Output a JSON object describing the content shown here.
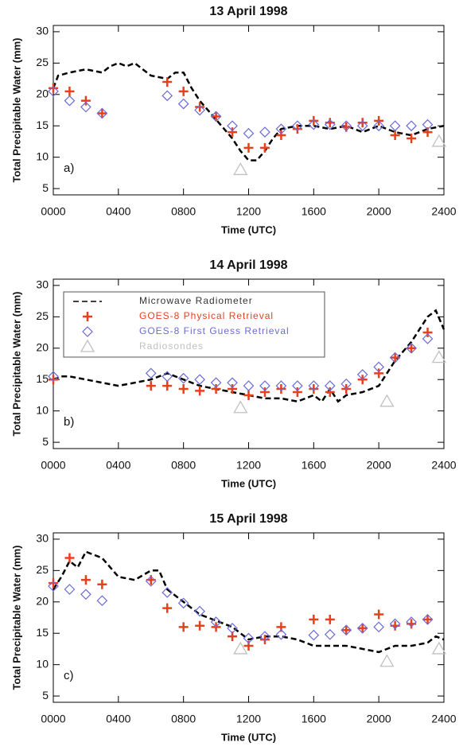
{
  "chart_data": [
    {
      "type": "line",
      "title": "13 April 1998",
      "annotation": "a)",
      "x_label": "Time (UTC)",
      "y_label": "Total Precipitable Water (mm)",
      "xlim": [
        0,
        24
      ],
      "ylim": [
        4,
        31
      ],
      "yticks": [
        5,
        10,
        15,
        20,
        25,
        30
      ],
      "xticks": [
        {
          "value": 0,
          "label": "0000"
        },
        {
          "value": 4,
          "label": "0400"
        },
        {
          "value": 8,
          "label": "0800"
        },
        {
          "value": 12,
          "label": "1200"
        },
        {
          "value": 16,
          "label": "1600"
        },
        {
          "value": 20,
          "label": "2000"
        },
        {
          "value": 24,
          "label": "2400"
        }
      ],
      "series": [
        {
          "type": "line",
          "color": "#000000",
          "x": [
            0,
            0.3,
            1,
            2,
            3,
            3.5,
            4,
            4.5,
            5,
            5.5,
            6,
            7,
            7.5,
            8,
            8.5,
            9,
            9.5,
            10,
            10.5,
            11,
            11.5,
            12,
            12.5,
            13,
            13.5,
            14,
            15,
            16,
            17,
            18,
            19,
            20,
            21,
            22,
            23,
            24
          ],
          "values": [
            21,
            23,
            23.5,
            24,
            23.5,
            24.5,
            25,
            24.5,
            25,
            24,
            23,
            22.5,
            23.5,
            23.5,
            21,
            19,
            17.5,
            16,
            14.5,
            13,
            11,
            9.5,
            9.5,
            11,
            13,
            14.5,
            15,
            15,
            14.5,
            15,
            14,
            15,
            14,
            13.5,
            14.5,
            15
          ]
        },
        {
          "type": "scatter",
          "marker": "plus",
          "color": "#e8401c",
          "x": [
            0,
            1,
            2,
            3,
            7,
            8,
            9,
            10,
            11,
            12,
            13,
            14,
            15,
            16,
            17,
            18,
            19,
            20,
            21,
            22,
            23
          ],
          "values": [
            21,
            20.5,
            19,
            17,
            22,
            20.5,
            18,
            16.5,
            14,
            11.5,
            11.5,
            13.5,
            14.5,
            15.8,
            15.5,
            14.8,
            15.5,
            15.8,
            13.5,
            13,
            14
          ]
        },
        {
          "type": "scatter",
          "marker": "diamond",
          "color": "#6a6ad8",
          "x": [
            0,
            1,
            2,
            3,
            7,
            8,
            9,
            10,
            11,
            12,
            13,
            14,
            15,
            16,
            17,
            18,
            19,
            20,
            21,
            22,
            23
          ],
          "values": [
            20.5,
            19,
            18,
            17,
            19.8,
            18.5,
            17.5,
            16.5,
            15,
            13.8,
            14,
            14.5,
            15,
            15.2,
            15.2,
            15,
            15,
            15,
            15,
            15,
            15.2
          ]
        },
        {
          "type": "scatter",
          "marker": "triangle",
          "color": "#c0c0c0",
          "x": [
            11.5,
            23.7
          ],
          "values": [
            8,
            12.5
          ]
        }
      ]
    },
    {
      "type": "line",
      "title": "14 April 1998",
      "annotation": "b)",
      "x_label": "Time (UTC)",
      "y_label": "Total Precipitable Water (mm)",
      "legend": "upper left",
      "xlim": [
        0,
        24
      ],
      "ylim": [
        4,
        31
      ],
      "yticks": [
        5,
        10,
        15,
        20,
        25,
        30
      ],
      "xticks": [
        {
          "value": 0,
          "label": "0000"
        },
        {
          "value": 4,
          "label": "0400"
        },
        {
          "value": 8,
          "label": "0800"
        },
        {
          "value": 12,
          "label": "1200"
        },
        {
          "value": 16,
          "label": "1600"
        },
        {
          "value": 20,
          "label": "2000"
        },
        {
          "value": 24,
          "label": "2400"
        }
      ],
      "series": [
        {
          "name": "Microwave Radiometer",
          "type": "line",
          "color": "#000000",
          "x": [
            0,
            0.5,
            1,
            2,
            3,
            4,
            5,
            6,
            7,
            8,
            9,
            10,
            11,
            12,
            13,
            14,
            15,
            16,
            16.5,
            17,
            17.5,
            18,
            19,
            20,
            20.5,
            21,
            22,
            22.5,
            23,
            23.5,
            24
          ],
          "values": [
            15,
            15.5,
            15.5,
            15,
            14.5,
            14,
            14.5,
            15,
            16,
            15,
            14,
            13.5,
            13,
            12.5,
            12,
            12,
            11.5,
            12.5,
            11.5,
            13.5,
            11.5,
            12.5,
            13,
            14,
            16,
            18,
            21,
            23,
            25,
            26,
            23
          ]
        },
        {
          "name": "GOES-8 Physical Retrieval",
          "type": "scatter",
          "marker": "plus",
          "color": "#e8401c",
          "x": [
            0,
            6,
            7,
            8,
            9,
            10,
            11,
            12,
            13,
            14,
            15,
            16,
            17,
            18,
            19,
            20,
            21,
            22,
            23
          ],
          "values": [
            15,
            14,
            14,
            13.5,
            13.2,
            13.5,
            13.5,
            12.5,
            13,
            13.5,
            13,
            13.5,
            13,
            13.5,
            15,
            16,
            18.5,
            20,
            22.5
          ]
        },
        {
          "name": "GOES-8 First Guess Retrieval",
          "type": "scatter",
          "marker": "diamond",
          "color": "#6a6ad8",
          "x": [
            0,
            6,
            7,
            8,
            9,
            10,
            11,
            12,
            13,
            14,
            15,
            16,
            17,
            18,
            19,
            20,
            21,
            22,
            23
          ],
          "values": [
            15.5,
            16,
            15.5,
            15.2,
            15,
            14.5,
            14.5,
            14,
            14,
            14,
            14,
            14,
            14,
            14.3,
            15.8,
            17,
            18.5,
            20,
            21.5
          ]
        },
        {
          "name": "Radiosondes",
          "type": "scatter",
          "marker": "triangle",
          "color": "#c0c0c0",
          "x": [
            11.5,
            20.5,
            23.7
          ],
          "values": [
            10.5,
            11.5,
            18.5
          ]
        }
      ]
    },
    {
      "type": "line",
      "title": "15 April 1998",
      "annotation": "c)",
      "x_label": "Time (UTC)",
      "y_label": "Total Precipitable Water (mm)",
      "xlim": [
        0,
        24
      ],
      "ylim": [
        4,
        31
      ],
      "yticks": [
        5,
        10,
        15,
        20,
        25,
        30
      ],
      "xticks": [
        {
          "value": 0,
          "label": "0000"
        },
        {
          "value": 4,
          "label": "0400"
        },
        {
          "value": 8,
          "label": "0800"
        },
        {
          "value": 12,
          "label": "1200"
        },
        {
          "value": 16,
          "label": "1600"
        },
        {
          "value": 20,
          "label": "2000"
        },
        {
          "value": 24,
          "label": "2400"
        }
      ],
      "series": [
        {
          "type": "line",
          "color": "#000000",
          "x": [
            0,
            0.5,
            1,
            1.5,
            2,
            3,
            4,
            5,
            6,
            6.5,
            7,
            8,
            9,
            10,
            11,
            11.5,
            12,
            13,
            14,
            15,
            16,
            17,
            18,
            19,
            20,
            21,
            22,
            23,
            23.5,
            24
          ],
          "values": [
            22,
            24,
            26.5,
            25.5,
            28,
            27,
            24,
            23.5,
            25,
            25,
            22,
            20,
            18,
            17,
            16,
            15,
            14,
            14.5,
            14.5,
            14,
            13,
            13,
            13,
            12.5,
            12,
            13,
            13,
            13.5,
            14.5,
            14
          ]
        },
        {
          "type": "scatter",
          "marker": "plus",
          "color": "#e8401c",
          "x": [
            0,
            1,
            2,
            3,
            6,
            7,
            8,
            9,
            10,
            11,
            12,
            13,
            14,
            16,
            17,
            18,
            19,
            20,
            21,
            22,
            23
          ],
          "values": [
            23,
            27,
            23.5,
            22.8,
            23.5,
            19,
            16,
            16.2,
            16,
            14.5,
            13,
            14,
            16,
            17.2,
            17.2,
            15.5,
            15.8,
            18,
            16.2,
            16.5,
            17.2
          ]
        },
        {
          "type": "scatter",
          "marker": "diamond",
          "color": "#6a6ad8",
          "x": [
            0,
            1,
            2,
            3,
            6,
            7,
            8,
            9,
            10,
            11,
            12,
            13,
            14,
            16,
            17,
            18,
            19,
            20,
            21,
            22,
            23
          ],
          "values": [
            22.5,
            22,
            21.2,
            20.2,
            23.3,
            21.5,
            19.8,
            18.5,
            16.8,
            15.8,
            14.2,
            14.5,
            14.8,
            14.7,
            14.8,
            15.5,
            15.8,
            16,
            16.5,
            16.8,
            17.2
          ]
        },
        {
          "type": "scatter",
          "marker": "triangle",
          "color": "#c0c0c0",
          "x": [
            11.5,
            20.5,
            23.7
          ],
          "values": [
            12.5,
            10.5,
            12.5
          ]
        }
      ]
    }
  ]
}
